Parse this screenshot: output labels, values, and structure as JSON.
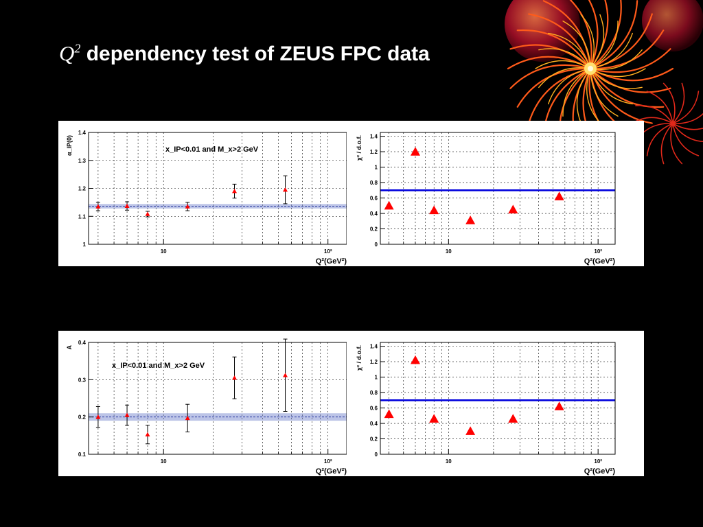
{
  "slide": {
    "title_var": "Q",
    "title_sup": "2",
    "title_rest": " dependency test of ZEUS FPC data"
  },
  "colors": {
    "background": "#000000",
    "marker": "#ff0000",
    "fit_band": "#6b7cc9",
    "chi2_line": "#0000dd"
  },
  "chart_data": [
    {
      "id": "alpha0",
      "type": "scatter",
      "xscale": "log",
      "xlim": [
        3.5,
        130
      ],
      "xticklabels": [
        "10",
        "10²"
      ],
      "ylim": [
        1.0,
        1.4
      ],
      "yticks": [
        1,
        1.1,
        1.2,
        1.3,
        1.4
      ],
      "yticklabels": [
        "1",
        "1.1",
        "1.2",
        "1.3",
        "1.4"
      ],
      "ylabel": "α_IP(0)",
      "xlabel": "Q²(GeV²)",
      "grid": true,
      "annotation": "x_IP<0.01 and M_x>2 GeV",
      "fit_band": {
        "center": 1.136,
        "halfwidth": 0.008
      },
      "x": [
        4,
        6,
        8,
        14,
        27,
        55
      ],
      "y": [
        1.135,
        1.137,
        1.108,
        1.135,
        1.19,
        1.195
      ],
      "yerr": [
        0.015,
        0.015,
        0.01,
        0.015,
        0.025,
        0.05
      ]
    },
    {
      "id": "chi2-alpha0",
      "type": "scatter",
      "xscale": "log",
      "xlim": [
        3.5,
        130
      ],
      "xticklabels": [
        "10",
        "10²"
      ],
      "ylim": [
        0,
        1.45
      ],
      "yticks": [
        0,
        0.2,
        0.4,
        0.6,
        0.8,
        1.0,
        1.2,
        1.4
      ],
      "yticklabels": [
        "0",
        "0.2",
        "0.4",
        "0.6",
        "0.8",
        "1",
        "1.2",
        "1.4"
      ],
      "ylabel": "χ² / d.o.f.",
      "xlabel": "Q²(GeV²)",
      "grid": true,
      "hline": 0.7,
      "x": [
        4,
        6,
        8,
        14,
        27,
        55
      ],
      "y": [
        0.5,
        1.2,
        0.44,
        0.31,
        0.45,
        0.62
      ]
    },
    {
      "id": "A",
      "type": "scatter",
      "xscale": "log",
      "xlim": [
        3.5,
        130
      ],
      "xticklabels": [
        "10",
        "10²"
      ],
      "ylim": [
        0.1,
        0.4
      ],
      "yticks": [
        0.1,
        0.2,
        0.3,
        0.4
      ],
      "yticklabels": [
        "0.1",
        "0.2",
        "0.3",
        "0.4"
      ],
      "ylabel": "A",
      "xlabel": "Q²(GeV²)",
      "grid": true,
      "annotation": "x_IP<0.01 and M_x>2 GeV",
      "fit_band": {
        "center": 0.2,
        "halfwidth": 0.01
      },
      "x": [
        4,
        6,
        8,
        14,
        27,
        55
      ],
      "y": [
        0.2,
        0.205,
        0.153,
        0.197,
        0.305,
        0.312
      ],
      "yerr": [
        0.028,
        0.027,
        0.025,
        0.037,
        0.056,
        0.097
      ]
    },
    {
      "id": "chi2-A",
      "type": "scatter",
      "xscale": "log",
      "xlim": [
        3.5,
        130
      ],
      "xticklabels": [
        "10",
        "10²"
      ],
      "ylim": [
        0,
        1.45
      ],
      "yticks": [
        0,
        0.2,
        0.4,
        0.6,
        0.8,
        1.0,
        1.2,
        1.4
      ],
      "yticklabels": [
        "0",
        "0.2",
        "0.4",
        "0.6",
        "0.8",
        "1",
        "1.2",
        "1.4"
      ],
      "ylabel": "χ² / d.o.f.",
      "xlabel": "Q²(GeV²)",
      "grid": true,
      "hline": 0.7,
      "x": [
        4,
        6,
        8,
        14,
        27,
        55
      ],
      "y": [
        0.52,
        1.22,
        0.46,
        0.3,
        0.46,
        0.62
      ]
    }
  ]
}
